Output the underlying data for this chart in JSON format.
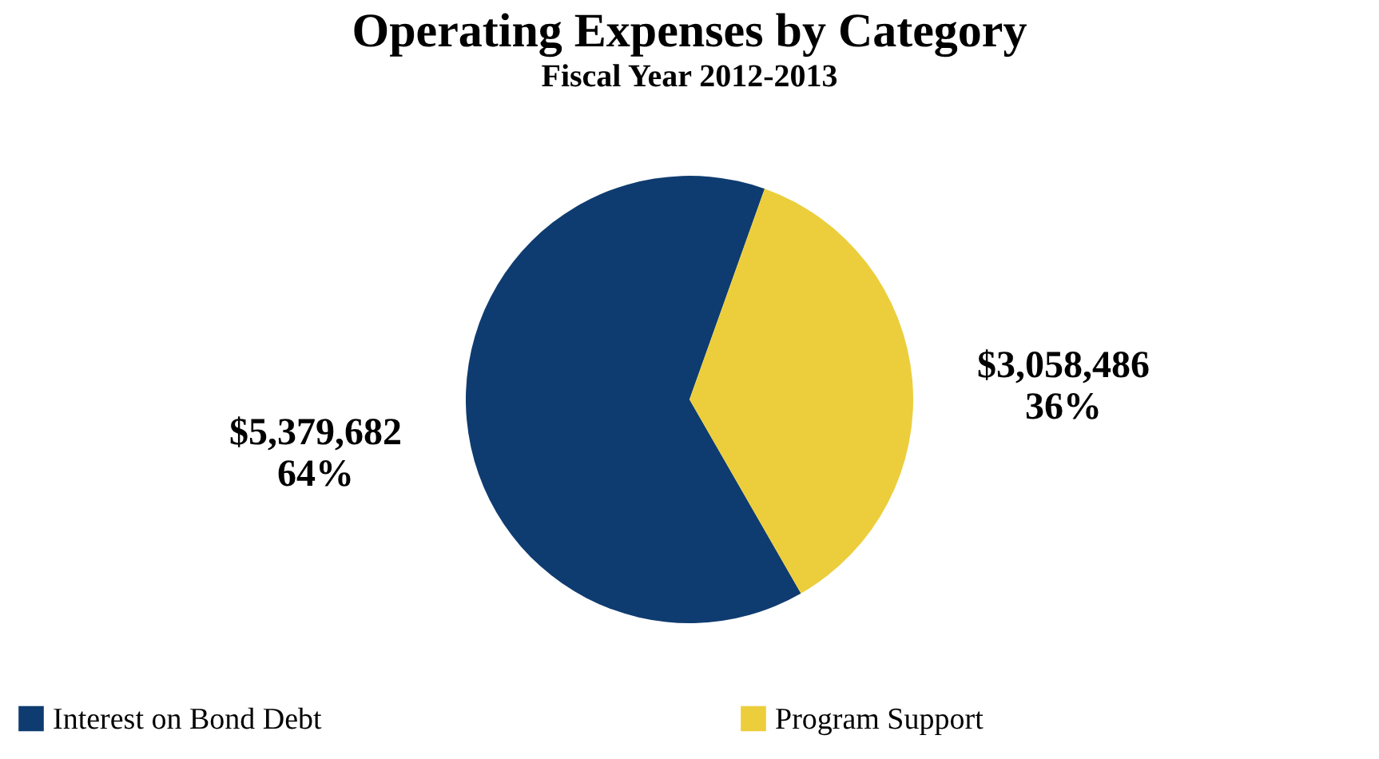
{
  "chart_data": {
    "type": "pie",
    "title": "Operating Expenses by Category",
    "subtitle": "Fiscal Year 2012-2013",
    "categories": [
      "Interest on Bond Debt",
      "Program Support"
    ],
    "values": [
      5379682,
      3058486
    ],
    "colors": [
      "#0f3c70",
      "#ecce3c"
    ],
    "value_labels": [
      "$5,379,682\n64%",
      "$3,058,486\n36%"
    ],
    "legend": "bottom"
  }
}
